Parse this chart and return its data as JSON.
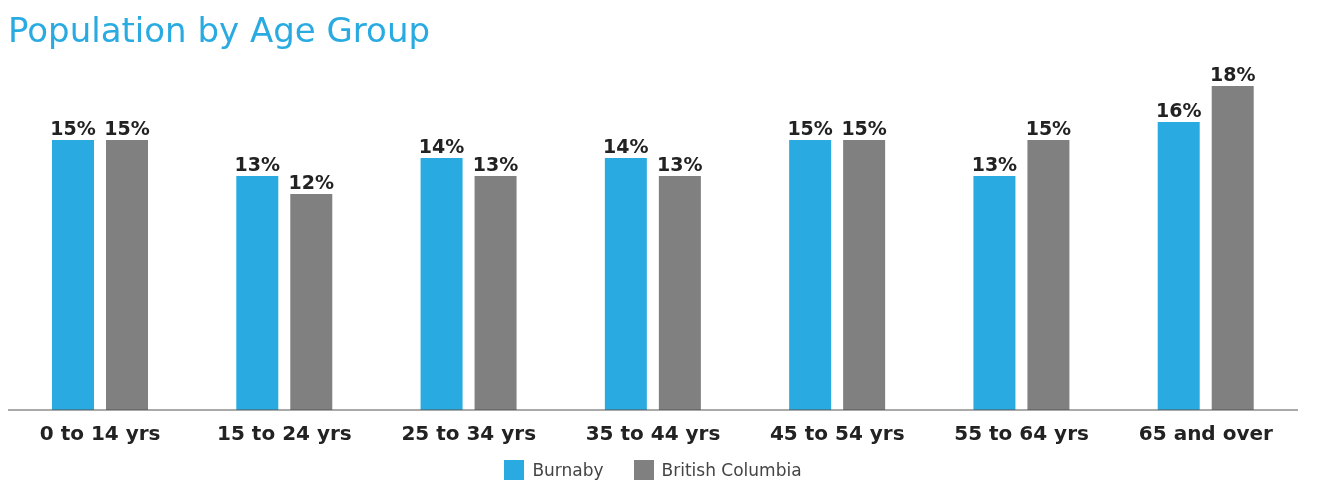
{
  "chart_data": {
    "type": "bar",
    "title": "Population by Age Group",
    "categories": [
      "0 to 14 yrs",
      "15 to 24 yrs",
      "25 to 34 yrs",
      "35 to 44 yrs",
      "45 to 54 yrs",
      "55 to 64 yrs",
      "65 and over"
    ],
    "series": [
      {
        "name": "Burnaby",
        "color": "#29abe2",
        "values": [
          15,
          13,
          14,
          14,
          15,
          13,
          16
        ],
        "value_labels": [
          "15%",
          "13%",
          "14%",
          "14%",
          "15%",
          "13%",
          "16%"
        ]
      },
      {
        "name": "British Columbia",
        "color": "#808080",
        "values": [
          15,
          12,
          13,
          13,
          15,
          15,
          18
        ],
        "value_labels": [
          "15%",
          "12%",
          "13%",
          "13%",
          "15%",
          "15%",
          "18%"
        ]
      }
    ],
    "legend": "bottom",
    "grid": false
  }
}
